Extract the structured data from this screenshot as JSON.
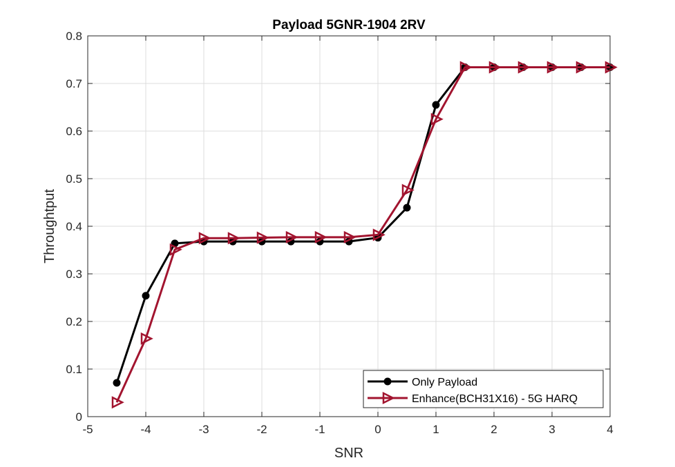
{
  "colors": {
    "series_1": "#000000",
    "series_2": "#a2142f",
    "grid": "#dcdcdc",
    "axis": "#262626"
  },
  "chart_data": {
    "type": "line",
    "title": "Payload 5GNR-1904 2RV",
    "xlabel": "SNR",
    "ylabel": "Throughtput",
    "xlim": [
      -5,
      4
    ],
    "ylim": [
      0,
      0.8
    ],
    "xticks": [
      "-5",
      "-4",
      "-3",
      "-2",
      "-1",
      "0",
      "1",
      "2",
      "3",
      "4"
    ],
    "yticks": [
      "0",
      "0.1",
      "0.2",
      "0.3",
      "0.4",
      "0.5",
      "0.6",
      "0.7",
      "0.8"
    ],
    "grid": true,
    "legend_position": "bottom-right",
    "x": [
      -4.5,
      -4,
      -3.5,
      -3,
      -2.5,
      -2,
      -1.5,
      -1,
      -0.5,
      0,
      0.5,
      1,
      1.5,
      2,
      2.5,
      3,
      3.5,
      4
    ],
    "series": [
      {
        "name": "Only Payload",
        "marker": "filled-circle",
        "values": [
          0.071,
          0.254,
          0.364,
          0.368,
          0.368,
          0.368,
          0.368,
          0.368,
          0.368,
          0.376,
          0.439,
          0.655,
          0.734,
          0.734,
          0.734,
          0.734,
          0.734,
          0.734
        ]
      },
      {
        "name": "Enhance(BCH31X16) - 5G HARQ",
        "marker": "right-triangle",
        "values": [
          0.03,
          0.164,
          0.351,
          0.375,
          0.375,
          0.376,
          0.377,
          0.377,
          0.377,
          0.382,
          0.476,
          0.625,
          0.734,
          0.734,
          0.734,
          0.734,
          0.734,
          0.734
        ]
      }
    ]
  }
}
